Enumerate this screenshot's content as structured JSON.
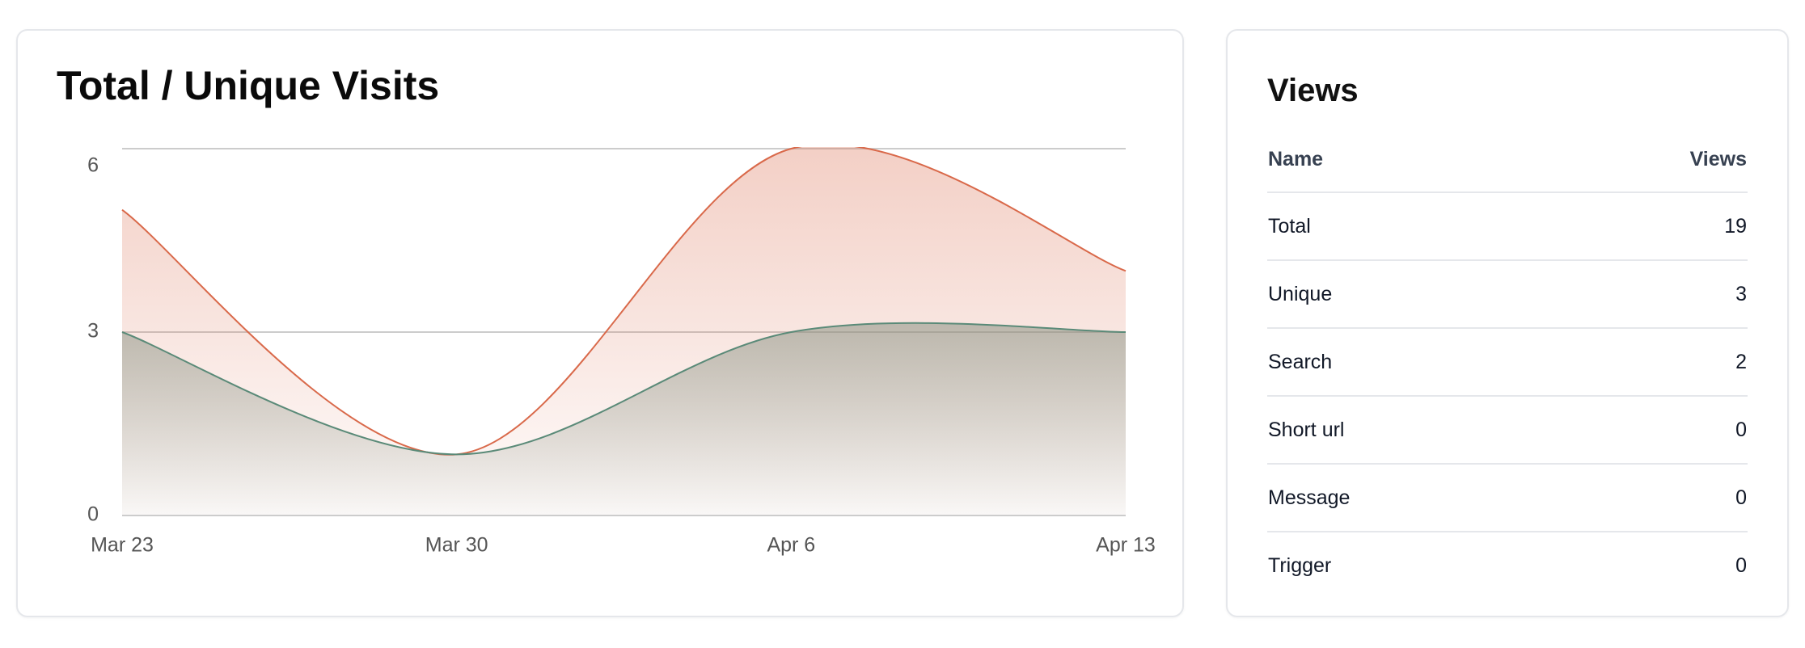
{
  "chart_data": {
    "type": "line",
    "title": "Total / Unique Visits",
    "x": [
      "Mar 23",
      "Mar 30",
      "Apr 6",
      "Apr 13"
    ],
    "series": [
      {
        "name": "Total",
        "color": "#d9694a",
        "values": [
          5,
          1,
          6,
          4
        ]
      },
      {
        "name": "Unique",
        "color": "#5a8a78",
        "values": [
          3,
          1,
          3,
          3
        ]
      }
    ],
    "ylim": [
      0,
      6
    ],
    "yticks": [
      0,
      3,
      6
    ],
    "grid": true
  },
  "views": {
    "title": "Views",
    "header": [
      "Name",
      "Views"
    ],
    "rows": [
      [
        "Total",
        "19"
      ],
      [
        "Unique",
        "3"
      ],
      [
        "Search",
        "2"
      ],
      [
        "Short url",
        "0"
      ],
      [
        "Message",
        "0"
      ],
      [
        "Trigger",
        "0"
      ]
    ]
  }
}
